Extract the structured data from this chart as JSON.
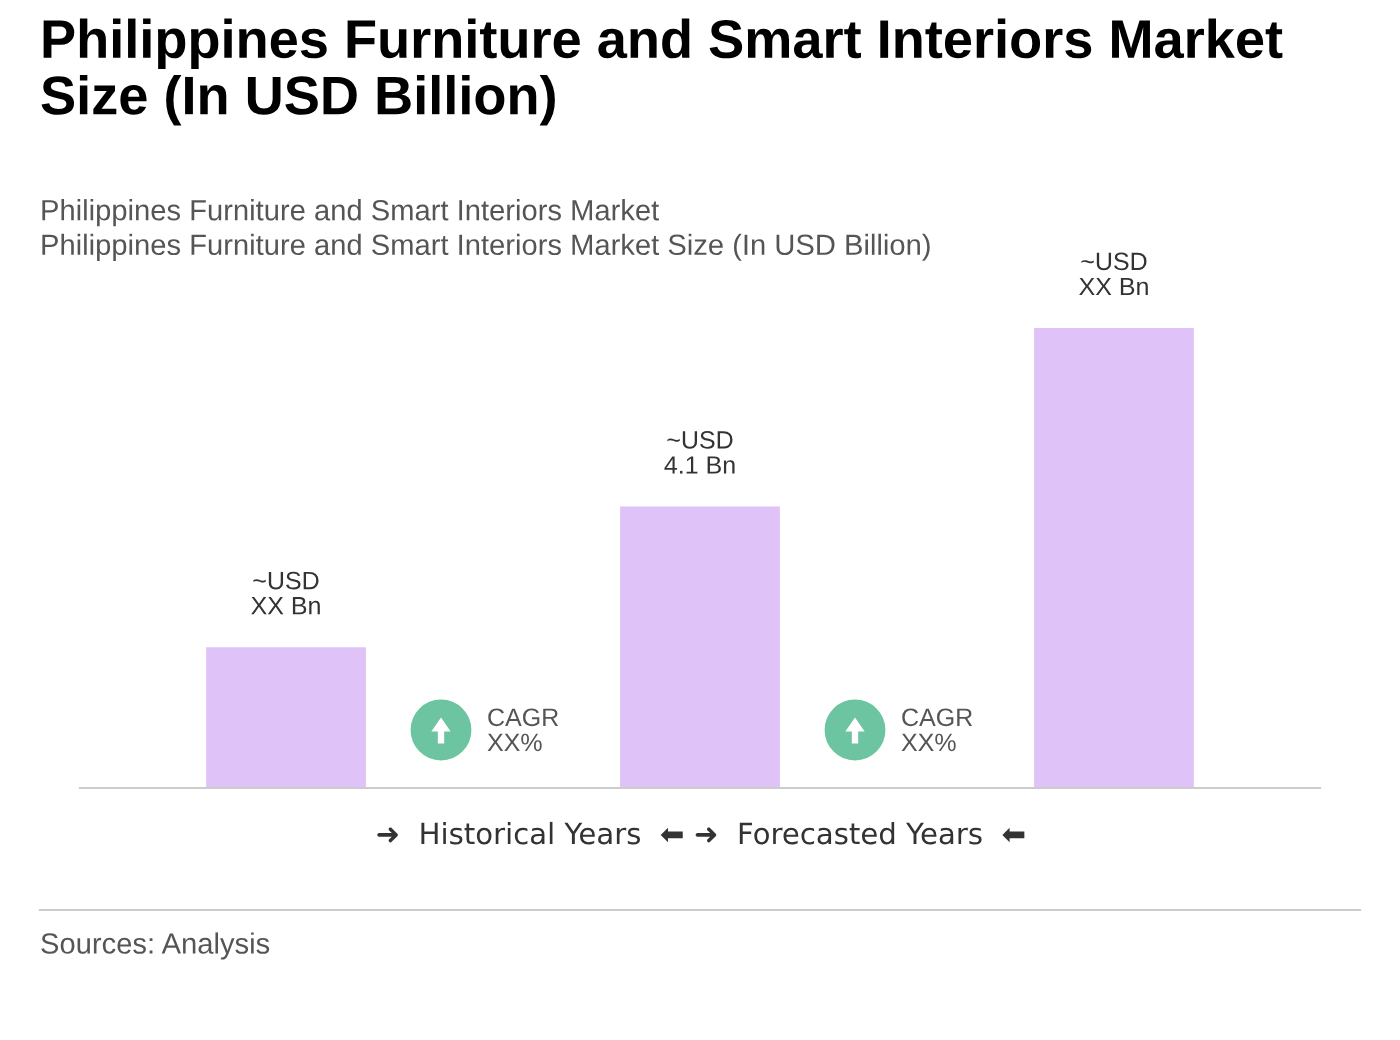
{
  "chart_data": {
    "type": "bar",
    "title": "Philippines Furniture and Smart Interiors Market Size (In USD Billion)",
    "subtitle": "Philippines Furniture and Smart Interiors Market\nPhilippines Furniture and Smart Interiors Market Size (In USD Billion)",
    "categories": [
      null,
      null,
      null
    ],
    "values": [
      2.05,
      4.1,
      6.7
    ],
    "color": "#dfc3f8",
    "value_labels": [
      "~USD\nXX Bn",
      "~USD\n4.1 Bn",
      "~USD\nXX Bn"
    ],
    "annotations": [
      "CAGR\nXX%",
      "CAGR\nXX%",
      "➜  Historical Years  ⬅",
      "➜  Forecasted Years  ⬅",
      "Sources: Analysis"
    ],
    "grid": false,
    "legend": false
  }
}
